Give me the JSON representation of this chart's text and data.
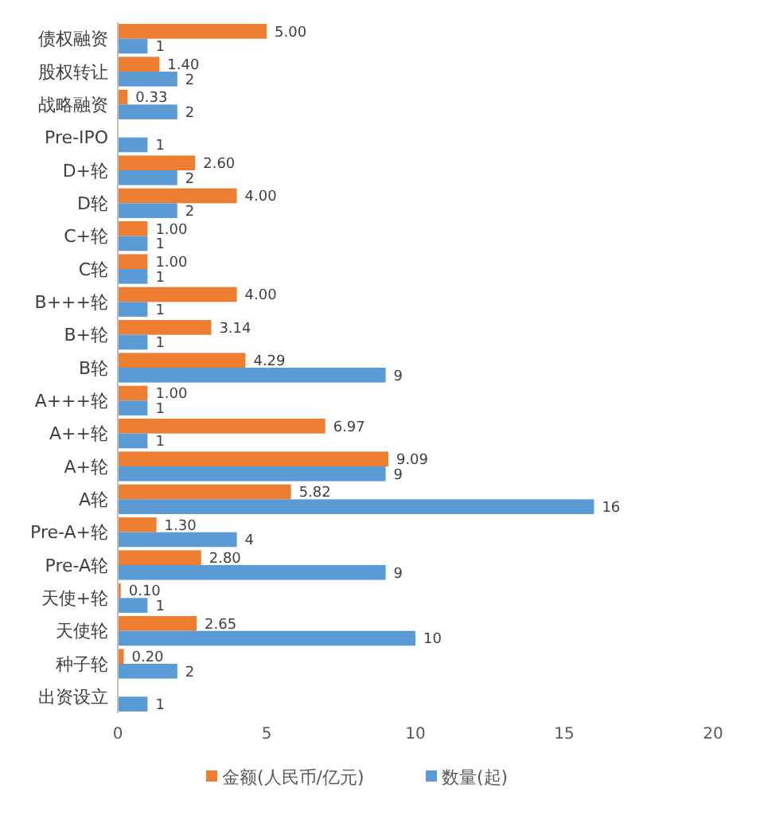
{
  "chart_data": {
    "type": "bar",
    "orientation": "horizontal",
    "categories": [
      "债权融资",
      "股权转让",
      "战略融资",
      "Pre-IPO",
      "D+轮",
      "D轮",
      "C+轮",
      "C轮",
      "B+++轮",
      "B+轮",
      "B轮",
      "A+++轮",
      "A++轮",
      "A+轮",
      "A轮",
      "Pre-A+轮",
      "Pre-A轮",
      "天使+轮",
      "天使轮",
      "种子轮",
      "出资设立"
    ],
    "series": [
      {
        "name": "金额(人民币/亿元)",
        "color": "#ed7d31",
        "values": [
          5.0,
          1.4,
          0.33,
          null,
          2.6,
          4.0,
          1.0,
          1.0,
          4.0,
          3.14,
          4.29,
          1.0,
          6.97,
          9.09,
          5.82,
          1.3,
          2.8,
          0.1,
          2.65,
          0.2,
          null
        ],
        "value_labels": [
          "5.00",
          "1.40",
          "0.33",
          null,
          "2.60",
          "4.00",
          "1.00",
          "1.00",
          "4.00",
          "3.14",
          "4.29",
          "1.00",
          "6.97",
          "9.09",
          "5.82",
          "1.30",
          "2.80",
          "0.10",
          "2.65",
          "0.20",
          null
        ]
      },
      {
        "name": "数量(起)",
        "color": "#5b9bd5",
        "values": [
          1,
          2,
          2,
          1,
          2,
          2,
          1,
          1,
          1,
          1,
          9,
          1,
          1,
          9,
          16,
          4,
          9,
          1,
          10,
          2,
          1
        ],
        "value_labels": [
          "1",
          "2",
          "2",
          "1",
          "2",
          "2",
          "1",
          "1",
          "1",
          "1",
          "9",
          "1",
          "1",
          "9",
          "16",
          "4",
          "9",
          "1",
          "10",
          "2",
          "1"
        ]
      }
    ],
    "xlim": [
      0,
      20
    ],
    "xticks": [
      0,
      5,
      10,
      15,
      20
    ],
    "grid": false,
    "legend": "bottom"
  }
}
